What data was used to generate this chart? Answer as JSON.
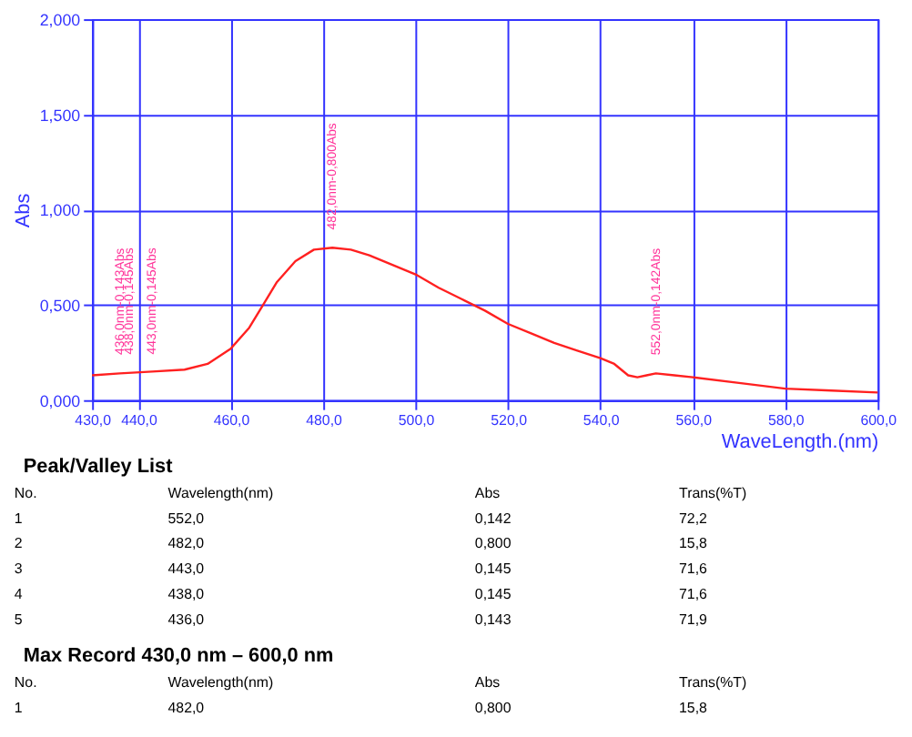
{
  "chart_data": {
    "type": "line",
    "xlabel": "WaveLength.(nm)",
    "ylabel": "Abs",
    "x": [
      430,
      436,
      443,
      450,
      455,
      460,
      464,
      467,
      470,
      474,
      478,
      482,
      486,
      490,
      495,
      500,
      505,
      510,
      515,
      520,
      525,
      530,
      535,
      540,
      543,
      546,
      548,
      550,
      552,
      556,
      560,
      570,
      580,
      590,
      600
    ],
    "series": [
      {
        "color": "#ff2020",
        "values": [
          0.13,
          0.14,
          0.15,
          0.16,
          0.19,
          0.27,
          0.38,
          0.5,
          0.62,
          0.73,
          0.79,
          0.8,
          0.79,
          0.76,
          0.71,
          0.66,
          0.59,
          0.53,
          0.47,
          0.4,
          0.35,
          0.3,
          0.26,
          0.22,
          0.19,
          0.13,
          0.12,
          0.13,
          0.14,
          0.13,
          0.12,
          0.09,
          0.06,
          0.05,
          0.04
        ]
      }
    ],
    "xlim": [
      430,
      600
    ],
    "xticks": [
      {
        "value": 430,
        "label": "430,0"
      },
      {
        "value": 440,
        "label": "440,0"
      },
      {
        "value": 460,
        "label": "460,0"
      },
      {
        "value": 480,
        "label": "480,0"
      },
      {
        "value": 500,
        "label": "500,0"
      },
      {
        "value": 520,
        "label": "520,0"
      },
      {
        "value": 540,
        "label": "540,0"
      },
      {
        "value": 560,
        "label": "560,0"
      },
      {
        "value": 580,
        "label": "580,0"
      },
      {
        "value": 600,
        "label": "600,0"
      }
    ],
    "ylim": [
      0,
      2
    ],
    "yticks": [
      {
        "value": 0,
        "label": "0,000"
      },
      {
        "value": 0.5,
        "label": "0,500"
      },
      {
        "value": 1,
        "label": "1,000"
      },
      {
        "value": 1.5,
        "label": "1,500"
      },
      {
        "value": 2,
        "label": "2,000"
      }
    ],
    "grid": true,
    "annotations": [
      {
        "text": "436,0nm-0,143Abs",
        "x": 436,
        "y": 0.143
      },
      {
        "text": "438,0nm-0,145Abs",
        "x": 438,
        "y": 0.145
      },
      {
        "text": "443,0nm-0,145Abs",
        "x": 443,
        "y": 0.145
      },
      {
        "text": "482,0nm-0,800Abs",
        "x": 482,
        "y": 0.8
      },
      {
        "text": "552,0nm-0,142Abs",
        "x": 552,
        "y": 0.142
      },
      "Peak/Valley List",
      "No.",
      "Wavelength(nm)",
      "Abs",
      "Trans(%T)",
      "1",
      "552,0",
      "0,142",
      "72,2",
      "2",
      "482,0",
      "0,800",
      "15,8",
      "3",
      "443,0",
      "0,145",
      "71,6",
      "4",
      "438,0",
      "0,145",
      "71,6",
      "5",
      "436,0",
      "0,143",
      "71,9",
      "Max Record  430,0 nm – 600,0 nm",
      "No.",
      "Wavelength(nm)",
      "Abs",
      "Trans(%T)",
      "1",
      "482,0",
      "0,800",
      "15,8"
    ]
  }
}
